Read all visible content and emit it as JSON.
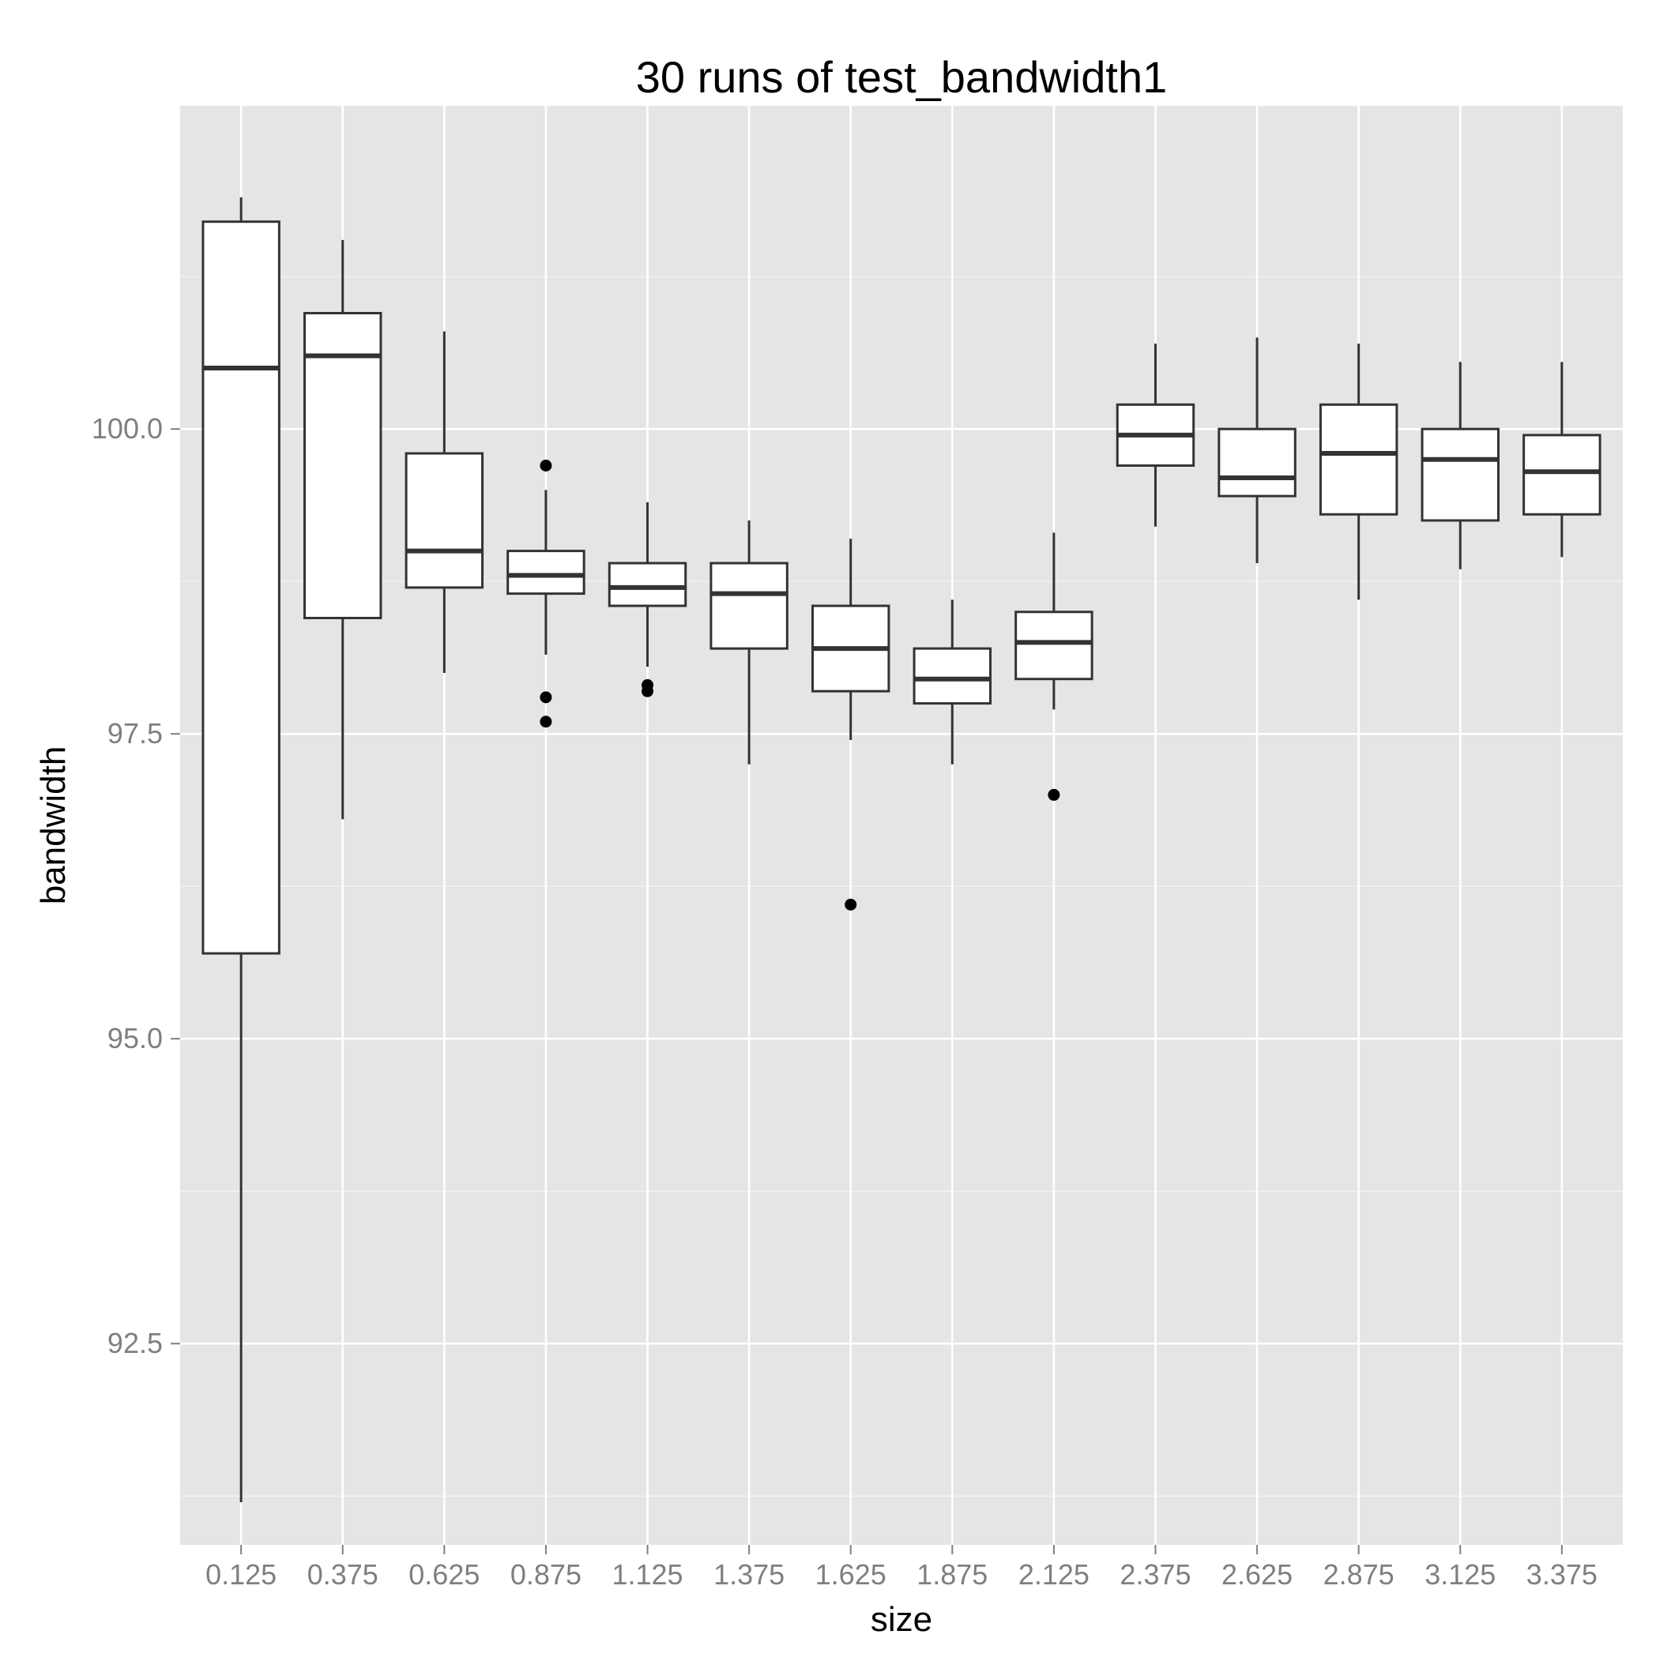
{
  "chart_data": {
    "type": "boxplot",
    "title": "30 runs of test_bandwidth1",
    "xlabel": "size",
    "ylabel": "bandwidth",
    "categories": [
      "0.125",
      "0.375",
      "0.625",
      "0.875",
      "1.125",
      "1.375",
      "1.625",
      "1.875",
      "2.125",
      "2.375",
      "2.625",
      "2.875",
      "3.125",
      "3.375"
    ],
    "ylim": [
      90.85,
      102.65
    ],
    "y_ticks": [
      92.5,
      95.0,
      97.5,
      100.0
    ],
    "y_tick_labels": [
      "92.5",
      "95.0",
      "97.5",
      "100.0"
    ],
    "grid": true,
    "panel_background": "#e5e5e5",
    "grid_color": "#ffffff",
    "box_fill": "#ffffff",
    "box_stroke": "#333333",
    "series": [
      {
        "boxes": [
          {
            "category": "0.125",
            "min": 91.2,
            "q1": 95.7,
            "median": 100.5,
            "q3": 101.7,
            "max": 101.9,
            "outliers": []
          },
          {
            "category": "0.375",
            "min": 96.8,
            "q1": 98.45,
            "median": 100.6,
            "q3": 100.95,
            "max": 101.55,
            "outliers": []
          },
          {
            "category": "0.625",
            "min": 98.0,
            "q1": 98.7,
            "median": 99.0,
            "q3": 99.8,
            "max": 100.8,
            "outliers": []
          },
          {
            "category": "0.875",
            "min": 98.15,
            "q1": 98.65,
            "median": 98.8,
            "q3": 99.0,
            "max": 99.5,
            "outliers": [
              99.7,
              97.8,
              97.6
            ]
          },
          {
            "category": "1.125",
            "min": 98.05,
            "q1": 98.55,
            "median": 98.7,
            "q3": 98.9,
            "max": 99.4,
            "outliers": [
              97.9,
              97.85
            ]
          },
          {
            "category": "1.375",
            "min": 97.25,
            "q1": 98.2,
            "median": 98.65,
            "q3": 98.9,
            "max": 99.25,
            "outliers": []
          },
          {
            "category": "1.625",
            "min": 97.45,
            "q1": 97.85,
            "median": 98.2,
            "q3": 98.55,
            "max": 99.1,
            "outliers": [
              96.1
            ]
          },
          {
            "category": "1.875",
            "min": 97.25,
            "q1": 97.75,
            "median": 97.95,
            "q3": 98.2,
            "max": 98.6,
            "outliers": []
          },
          {
            "category": "2.125",
            "min": 97.7,
            "q1": 97.95,
            "median": 98.25,
            "q3": 98.5,
            "max": 99.15,
            "outliers": [
              97.0
            ]
          },
          {
            "category": "2.375",
            "min": 99.2,
            "q1": 99.7,
            "median": 99.95,
            "q3": 100.2,
            "max": 100.7,
            "outliers": []
          },
          {
            "category": "2.625",
            "min": 98.9,
            "q1": 99.45,
            "median": 99.6,
            "q3": 100.0,
            "max": 100.75,
            "outliers": []
          },
          {
            "category": "2.875",
            "min": 98.6,
            "q1": 99.3,
            "median": 99.8,
            "q3": 100.2,
            "max": 100.7,
            "outliers": []
          },
          {
            "category": "3.125",
            "min": 98.85,
            "q1": 99.25,
            "median": 99.75,
            "q3": 100.0,
            "max": 100.55,
            "outliers": []
          },
          {
            "category": "3.375",
            "min": 98.95,
            "q1": 99.3,
            "median": 99.65,
            "q3": 99.95,
            "max": 100.55,
            "outliers": []
          }
        ]
      }
    ]
  }
}
